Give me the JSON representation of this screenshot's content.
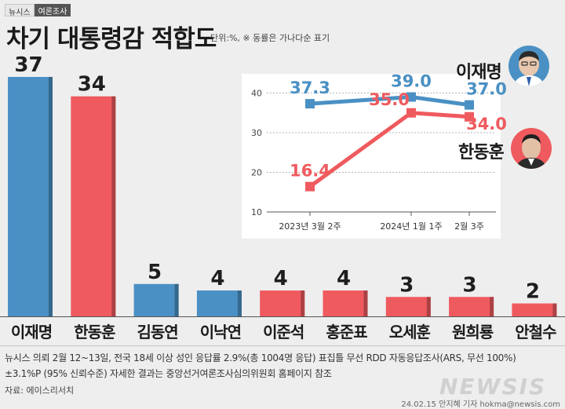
{
  "header": {
    "badge_left": "뉴시스",
    "badge_right": "여론조사",
    "title": "차기 대통령감 적합도",
    "unit_note": "단위:%, ※ 동률은 가나다순 표기"
  },
  "chart_data": [
    {
      "type": "bar",
      "title": "차기 대통령감 적합도",
      "categories": [
        "이재명",
        "한동훈",
        "김동연",
        "이낙연",
        "이준석",
        "홍준표",
        "오세훈",
        "원희룡",
        "안철수"
      ],
      "values": [
        37,
        34,
        5,
        4,
        4,
        4,
        3,
        3,
        2
      ],
      "bar_colors": [
        "#4a90c4",
        "#ef5a5e",
        "#4a90c4",
        "#4a90c4",
        "#ef5a5e",
        "#ef5a5e",
        "#ef5a5e",
        "#ef5a5e",
        "#ef5a5e"
      ],
      "ylim": [
        0,
        37
      ]
    },
    {
      "type": "line",
      "x": [
        "2023년 3월 2주",
        "2024년 1월 1주",
        "2월 3주"
      ],
      "series": [
        {
          "name": "이재명",
          "values": [
            37.3,
            39.0,
            37.0
          ],
          "color": "#4a90c4"
        },
        {
          "name": "한동훈",
          "values": [
            16.4,
            35.0,
            34.0
          ],
          "color": "#ef5a5e"
        }
      ],
      "y_ticks": [
        10,
        20,
        30,
        40
      ],
      "ylim": [
        10,
        43
      ],
      "grid": true
    }
  ],
  "legend_people": {
    "lee": {
      "name": "이재명",
      "bg": "#4a90c4"
    },
    "han": {
      "name": "한동훈",
      "bg": "#ef5a5e"
    }
  },
  "footer": {
    "note_line1": "뉴시스 의뢰 2월 12~13일, 전국 18세 이상 성인 응답률 2.9%(총 1004명 응답) 표집틀 무선 RDD 자동응답조사(ARS, 무선 100%)",
    "note_line2": "±3.1%P (95% 신뢰수준) 자세한 결과는 중앙선거여론조사심의위원회 홈페이지 참조",
    "source": "자료: 에이스리서치",
    "credit": "24.02.15 안지혜 기자 hokma@newsis.com",
    "watermark": "NEWSIS"
  }
}
